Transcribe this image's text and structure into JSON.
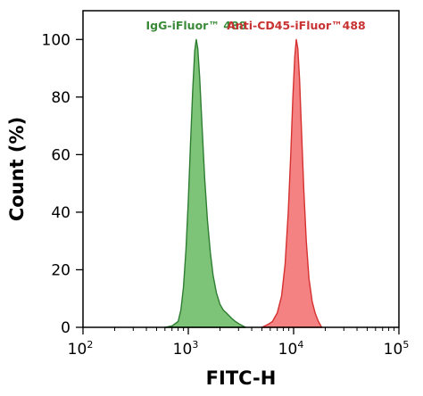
{
  "chart_data": {
    "type": "area",
    "xlabel": "FITC-H",
    "ylabel": "Count (%)",
    "xscale": "log",
    "xlim": [
      100,
      100000
    ],
    "ylim": [
      0,
      110
    ],
    "x_ticks": [
      {
        "value": 100,
        "base": "10",
        "exp": "2"
      },
      {
        "value": 1000,
        "base": "10",
        "exp": "3"
      },
      {
        "value": 10000,
        "base": "10",
        "exp": "4"
      },
      {
        "value": 100000,
        "base": "10",
        "exp": "5"
      }
    ],
    "y_ticks": [
      "0",
      "20",
      "40",
      "60",
      "80",
      "100"
    ],
    "grid": false,
    "series": [
      {
        "name": "IgG-iFluor™ 488",
        "stroke": "#2e7d32",
        "fill": "#7dc478",
        "label_color": "#3a8a3a",
        "points": [
          [
            600,
            0
          ],
          [
            700,
            0.5
          ],
          [
            800,
            2
          ],
          [
            850,
            6
          ],
          [
            900,
            14
          ],
          [
            950,
            27
          ],
          [
            1000,
            44
          ],
          [
            1050,
            64
          ],
          [
            1100,
            82
          ],
          [
            1150,
            96
          ],
          [
            1190,
            100
          ],
          [
            1230,
            97
          ],
          [
            1280,
            87
          ],
          [
            1350,
            70
          ],
          [
            1430,
            52
          ],
          [
            1520,
            37
          ],
          [
            1620,
            26
          ],
          [
            1720,
            18
          ],
          [
            1850,
            12
          ],
          [
            2000,
            8
          ],
          [
            2150,
            6
          ],
          [
            2300,
            5
          ],
          [
            2450,
            4
          ],
          [
            2600,
            3
          ],
          [
            2800,
            2
          ],
          [
            3100,
            1
          ],
          [
            3500,
            0
          ]
        ]
      },
      {
        "name": "Anti-CD45-iFluor™488",
        "stroke": "#d63030",
        "fill": "#f48282",
        "label_color": "#c83232",
        "points": [
          [
            5000,
            0
          ],
          [
            5700,
            1
          ],
          [
            6300,
            2
          ],
          [
            7000,
            5
          ],
          [
            7700,
            11
          ],
          [
            8300,
            22
          ],
          [
            8900,
            40
          ],
          [
            9400,
            60
          ],
          [
            9850,
            80
          ],
          [
            10250,
            94
          ],
          [
            10600,
            100
          ],
          [
            10950,
            97
          ],
          [
            11400,
            86
          ],
          [
            11900,
            68
          ],
          [
            12500,
            48
          ],
          [
            13200,
            30
          ],
          [
            14000,
            17
          ],
          [
            15000,
            9
          ],
          [
            16000,
            5
          ],
          [
            17200,
            2
          ],
          [
            18500,
            0
          ]
        ]
      }
    ]
  }
}
